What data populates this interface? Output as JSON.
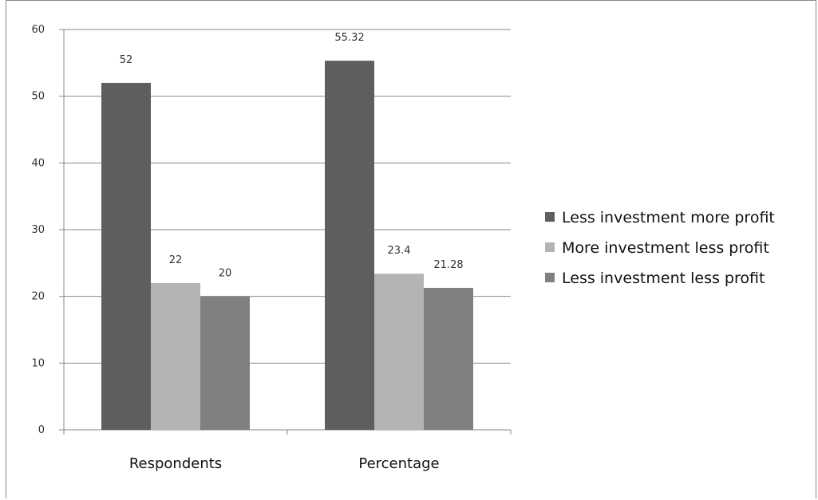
{
  "chart_data": {
    "type": "bar",
    "title": "",
    "xlabel": "",
    "ylabel": "",
    "ylim": [
      0,
      60
    ],
    "yticks": [
      0,
      10,
      20,
      30,
      40,
      50,
      60
    ],
    "grid": true,
    "legend_position": "right",
    "categories": [
      "Respondents",
      "Percentage"
    ],
    "series": [
      {
        "name": "Less investment more profit",
        "values": [
          52,
          55.32
        ],
        "labels": [
          "52",
          "55.32"
        ],
        "color": "#5e5e5e"
      },
      {
        "name": "More investment less profit",
        "values": [
          22,
          23.4
        ],
        "labels": [
          "22",
          "23.4"
        ],
        "color": "#b4b4b4"
      },
      {
        "name": "Less investment less profit",
        "values": [
          20,
          21.28
        ],
        "labels": [
          "20",
          "21.28"
        ],
        "color": "#808080"
      }
    ]
  }
}
